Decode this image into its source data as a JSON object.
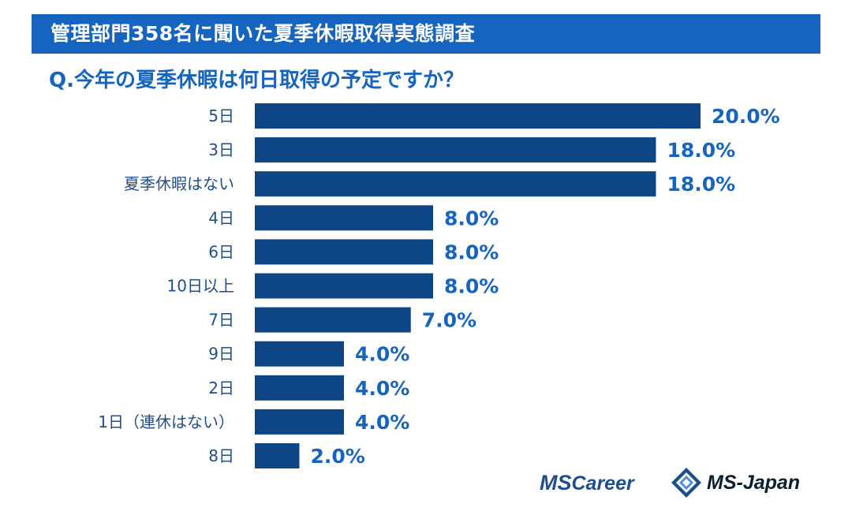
{
  "header": {
    "title": "管理部門358名に聞いた夏季休暇取得実態調査",
    "question": "Q.今年の夏季休暇は何日取得の予定ですか？"
  },
  "colors": {
    "banner": "#1565c0",
    "bar": "#0d4585",
    "value_text": "#1565c0",
    "category_text": "#1f4e8c"
  },
  "chart_data": {
    "type": "bar",
    "orientation": "horizontal",
    "categories": [
      "5日",
      "3日",
      "夏季休暇はない",
      "4日",
      "6日",
      "10日以上",
      "7日",
      "9日",
      "2日",
      "1日（連休はない）",
      "8日"
    ],
    "values": [
      20.0,
      18.0,
      18.0,
      8.0,
      8.0,
      8.0,
      7.0,
      4.0,
      4.0,
      4.0,
      2.0
    ],
    "value_labels": [
      "20.0%",
      "18.0%",
      "18.0%",
      "8.0%",
      "8.0%",
      "8.0%",
      "7.0%",
      "4.0%",
      "4.0%",
      "4.0%",
      "2.0%"
    ],
    "unit": "%",
    "xlim": [
      0,
      20
    ],
    "grid": false,
    "legend": "none"
  },
  "footer": {
    "logo1_initials": "MS",
    "logo1_rest": "Career",
    "logo2_icon": "ms-japan-diamond-icon",
    "logo2_text": "MS-Japan"
  }
}
